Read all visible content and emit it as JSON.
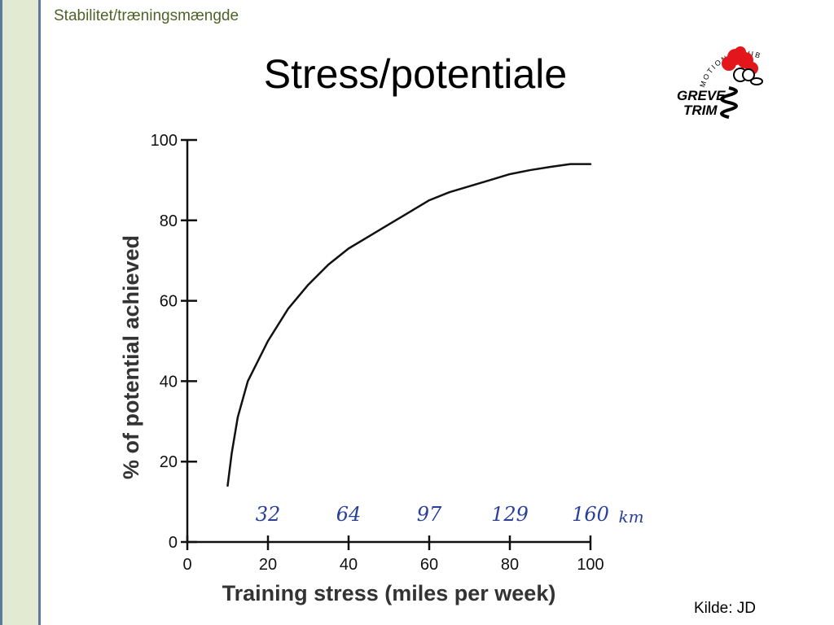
{
  "slide": {
    "section": "Stabilitet/træningsmængde",
    "title": "Stress/potentiale",
    "source": "Kilde: JD"
  },
  "logo": {
    "arc_text": "MOTIONSKLUB",
    "line1": "GREVE",
    "line2": "TRIM",
    "accent": "#e3161b"
  },
  "chart_data": {
    "type": "line",
    "xlabel": "Training stress (miles per week)",
    "ylabel": "% of potential achieved",
    "xlim": [
      0,
      100
    ],
    "ylim": [
      0,
      100
    ],
    "x_ticks": [
      0,
      20,
      40,
      60,
      80,
      100
    ],
    "y_ticks": [
      0,
      20,
      40,
      60,
      80,
      100
    ],
    "grid": false,
    "series": [
      {
        "x": [
          10,
          11,
          12.5,
          15,
          20,
          25,
          30,
          35,
          40,
          45,
          50,
          55,
          60,
          65,
          70,
          75,
          80,
          85,
          90,
          95,
          100
        ],
        "y": [
          14,
          22,
          31,
          40,
          50,
          58,
          64,
          69,
          73,
          76,
          79,
          82,
          85,
          87,
          88.5,
          90,
          91.5,
          92.5,
          93.3,
          94,
          94
        ]
      }
    ],
    "annotations": {
      "km_labels": [
        {
          "x": 20,
          "text": "32"
        },
        {
          "x": 40,
          "text": "64"
        },
        {
          "x": 60,
          "text": "97"
        },
        {
          "x": 80,
          "text": "129"
        },
        {
          "x": 100,
          "text": "160"
        }
      ],
      "km_unit": "km"
    },
    "colors": {
      "line": "#111111",
      "handwriting": "#2a3f9a"
    }
  }
}
